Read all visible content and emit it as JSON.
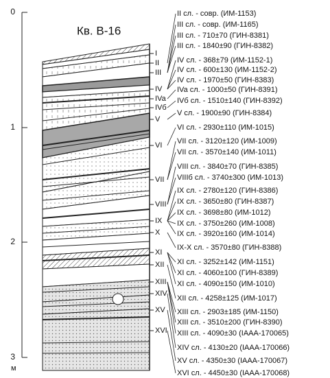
{
  "title": "Кв. В-16",
  "depth_scale": {
    "ticks": [
      "0",
      "1",
      "2",
      "3"
    ],
    "unit": "м"
  },
  "layers": [
    "I",
    "II",
    "III",
    "IV",
    "IVa",
    "IVб",
    "V",
    "VI",
    "VII",
    "VIII",
    "IX",
    "X",
    "XI",
    "XII",
    "XIII",
    "XIV",
    "XV",
    "XVI"
  ],
  "dates": [
    "II сл. - совр. (ИМ-1153)",
    "III сл. - совр. (ИМ-1165)",
    "III сл. - 710±70 (ГИН-8381)",
    "III сл. - 1840±90 (ГИН-8382)",
    "IV сл. - 368±79 (ИМ-1152-1)",
    "IV сл. - 600±130 (ИМ-1152-2)",
    "IV сл. - 1970±50 (ГИН-8383)",
    "IVa сл. - 1000±50 (ГИН-8391)",
    "IVб сл. - 1510±140 (ГИН-8392)",
    "V сл. - 1900±90 (ГИН-8384)",
    "VI сл. - 2930±110 (ИМ-1015)",
    "VII сл. - 3120±120 (ИМ-1009)",
    "VII сл. - 3570±140 (ИМ-1011)",
    "VIII сл. - 3840±70 (ГИН-8385)",
    "VIIIб сл. - 3740±300 (ИМ-1013)",
    "IX сл. - 2780±120 (ГИН-8386)",
    "IX сл. - 3650±80 (ГИН-8387)",
    "IX сл. - 3698±80 (ИМ-1012)",
    "IX сл. - 3750±260 (ИМ-1008)",
    "IX сл. - 3920±160 (ИМ-1014)",
    "IX-X сл. - 3570±80 (ГИН-8388)",
    "XI сл. - 3252±142 (ИМ-1151)",
    "XI сл. - 4060±100 (ГИН-8389)",
    "XI сл. - 4090±150 (ИМ-1010)",
    "XII сл. - 4258±125 (ИМ-1017)",
    "XIII сл. - 2903±185 (ИМ-1150)",
    "XIII сл. - 3510±200 (ГИН-8390)",
    "XIII сл. - 4090±30 (IAAA-170065)",
    "XIV сл. - 4130±20 (IAAA-170066)",
    "XV сл. - 4350±30 (IAAA-170067)",
    "XVI сл. - 4450±30 (IAAA-170068)"
  ]
}
